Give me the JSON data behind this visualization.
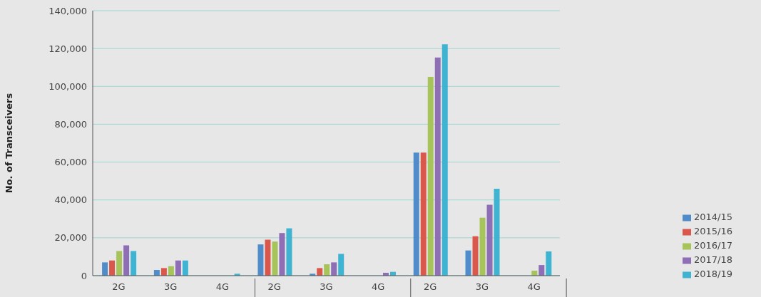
{
  "chart_data": {
    "type": "bar",
    "ylabel": "No. of Transceivers",
    "categories": [
      "2G",
      "3G",
      "4G",
      "2G",
      "3G",
      "4G",
      "2G",
      "3G",
      "4G"
    ],
    "series": [
      {
        "name": "2014/15",
        "color": "#4f8cc9",
        "values": [
          7000,
          3000,
          null,
          16500,
          1000,
          null,
          65000,
          13300,
          null
        ]
      },
      {
        "name": "2015/16",
        "color": "#d9574b",
        "values": [
          8000,
          4000,
          null,
          19000,
          4000,
          null,
          65000,
          20800,
          null
        ]
      },
      {
        "name": "2016/17",
        "color": "#a6c45a",
        "values": [
          13000,
          5000,
          null,
          18000,
          6000,
          null,
          105000,
          30600,
          2600
        ]
      },
      {
        "name": "2017/18",
        "color": "#8e6fb5",
        "values": [
          16000,
          8000,
          null,
          22500,
          7000,
          1500,
          115300,
          37400,
          5600
        ]
      },
      {
        "name": "2018/19",
        "color": "#3fb4d2",
        "values": [
          13000,
          8000,
          1000,
          25000,
          11500,
          2000,
          122200,
          45900,
          12800
        ]
      }
    ],
    "ylim": [
      0,
      140000
    ],
    "yticks": [
      0,
      {
        "value": 20000,
        "label": "20,000"
      },
      {
        "value": 40000,
        "label": "40,000"
      },
      {
        "value": 60000,
        "label": "60,000"
      },
      {
        "value": 80000,
        "label": "80,000"
      },
      {
        "value": 100000,
        "label": "100,000"
      },
      {
        "value": 120000,
        "label": "120,000"
      },
      {
        "value": 140000,
        "label": "140,000"
      }
    ],
    "grid": "y",
    "legend": "bottom right"
  }
}
